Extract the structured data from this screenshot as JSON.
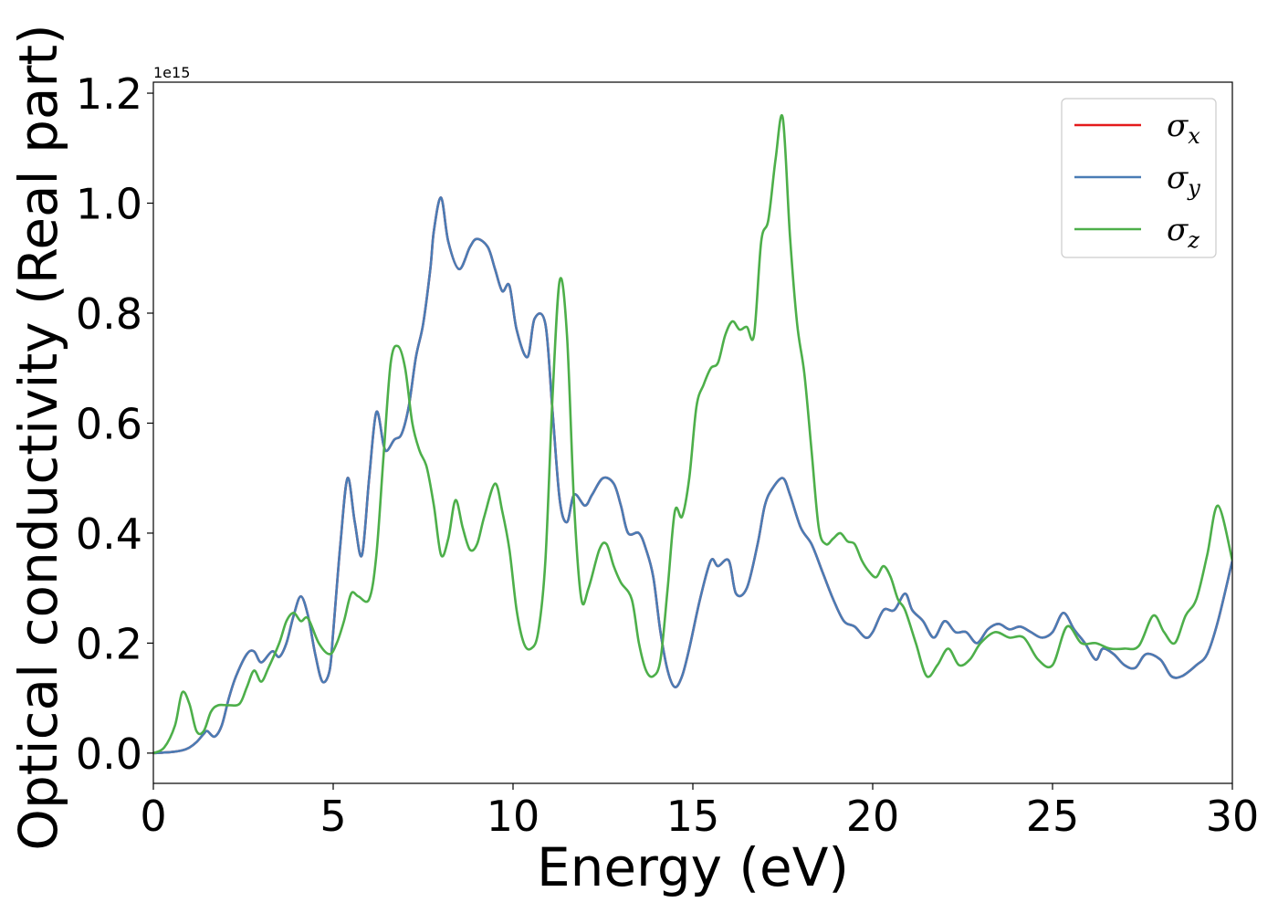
{
  "chart_data": {
    "type": "line",
    "title": "",
    "xlabel": "Energy (eV)",
    "ylabel": "Optical conductivity (Real part)",
    "y_offset_label": "1e15",
    "xlim": [
      0,
      30
    ],
    "ylim": [
      -0.055,
      1.22
    ],
    "xticks": [
      0,
      5,
      10,
      15,
      20,
      25,
      30
    ],
    "xtick_labels": [
      "0",
      "5",
      "10",
      "15",
      "20",
      "25",
      "30"
    ],
    "yticks": [
      0.0,
      0.2,
      0.4,
      0.6,
      0.8,
      1.0,
      1.2
    ],
    "ytick_labels": [
      "0.0",
      "0.2",
      "0.4",
      "0.6",
      "0.8",
      "1.0",
      "1.2"
    ],
    "grid": false,
    "legend_position": "top-right",
    "series": [
      {
        "name": "σ",
        "subscript": "x",
        "color": "#e41a1c",
        "x": [
          0,
          0.5,
          0.8,
          1.0,
          1.2,
          1.4,
          1.5,
          1.7,
          1.9,
          2.1,
          2.3,
          2.6,
          2.8,
          3.0,
          3.3,
          3.5,
          3.7,
          3.9,
          4.1,
          4.3,
          4.5,
          4.7,
          4.9,
          5.0,
          5.2,
          5.4,
          5.6,
          5.8,
          6.0,
          6.2,
          6.4,
          6.5,
          6.7,
          6.9,
          7.1,
          7.3,
          7.5,
          7.7,
          7.8,
          8.0,
          8.2,
          8.5,
          8.8,
          9.0,
          9.3,
          9.5,
          9.7,
          9.9,
          10.1,
          10.4,
          10.6,
          10.9,
          11.1,
          11.3,
          11.5,
          11.7,
          12.0,
          12.2,
          12.5,
          12.8,
          13.0,
          13.2,
          13.5,
          13.7,
          13.9,
          14.1,
          14.3,
          14.5,
          14.7,
          14.9,
          15.2,
          15.5,
          15.7,
          16.0,
          16.2,
          16.5,
          16.8,
          17.0,
          17.2,
          17.5,
          17.7,
          18.0,
          18.3,
          18.6,
          18.9,
          19.2,
          19.5,
          19.8,
          20.0,
          20.3,
          20.6,
          20.9,
          21.1,
          21.4,
          21.7,
          22.0,
          22.3,
          22.6,
          22.9,
          23.2,
          23.5,
          23.8,
          24.1,
          24.4,
          24.7,
          25.0,
          25.3,
          25.6,
          25.9,
          26.2,
          26.4,
          26.7,
          27.0,
          27.3,
          27.6,
          28.0,
          28.3,
          28.6,
          29.0,
          29.3,
          29.6,
          30.0
        ],
        "y": [
          0,
          0.002,
          0.005,
          0.01,
          0.02,
          0.035,
          0.04,
          0.03,
          0.05,
          0.1,
          0.14,
          0.18,
          0.185,
          0.165,
          0.185,
          0.175,
          0.2,
          0.25,
          0.285,
          0.25,
          0.18,
          0.13,
          0.15,
          0.22,
          0.38,
          0.5,
          0.42,
          0.36,
          0.5,
          0.62,
          0.56,
          0.55,
          0.57,
          0.58,
          0.63,
          0.72,
          0.78,
          0.88,
          0.95,
          1.01,
          0.93,
          0.88,
          0.92,
          0.935,
          0.92,
          0.88,
          0.84,
          0.85,
          0.77,
          0.72,
          0.79,
          0.78,
          0.62,
          0.46,
          0.42,
          0.47,
          0.45,
          0.47,
          0.5,
          0.49,
          0.45,
          0.4,
          0.4,
          0.37,
          0.32,
          0.22,
          0.15,
          0.12,
          0.14,
          0.19,
          0.28,
          0.35,
          0.34,
          0.35,
          0.29,
          0.3,
          0.38,
          0.45,
          0.48,
          0.5,
          0.47,
          0.41,
          0.38,
          0.33,
          0.28,
          0.24,
          0.23,
          0.21,
          0.22,
          0.26,
          0.26,
          0.29,
          0.26,
          0.24,
          0.21,
          0.24,
          0.22,
          0.22,
          0.2,
          0.225,
          0.235,
          0.225,
          0.23,
          0.22,
          0.21,
          0.22,
          0.255,
          0.225,
          0.2,
          0.17,
          0.19,
          0.18,
          0.16,
          0.155,
          0.18,
          0.17,
          0.14,
          0.14,
          0.16,
          0.18,
          0.24,
          0.35
        ]
      },
      {
        "name": "σ",
        "subscript": "y",
        "color": "#4a7cb5",
        "x": [
          0,
          0.5,
          0.8,
          1.0,
          1.2,
          1.4,
          1.5,
          1.7,
          1.9,
          2.1,
          2.3,
          2.6,
          2.8,
          3.0,
          3.3,
          3.5,
          3.7,
          3.9,
          4.1,
          4.3,
          4.5,
          4.7,
          4.9,
          5.0,
          5.2,
          5.4,
          5.6,
          5.8,
          6.0,
          6.2,
          6.4,
          6.5,
          6.7,
          6.9,
          7.1,
          7.3,
          7.5,
          7.7,
          7.8,
          8.0,
          8.2,
          8.5,
          8.8,
          9.0,
          9.3,
          9.5,
          9.7,
          9.9,
          10.1,
          10.4,
          10.6,
          10.9,
          11.1,
          11.3,
          11.5,
          11.7,
          12.0,
          12.2,
          12.5,
          12.8,
          13.0,
          13.2,
          13.5,
          13.7,
          13.9,
          14.1,
          14.3,
          14.5,
          14.7,
          14.9,
          15.2,
          15.5,
          15.7,
          16.0,
          16.2,
          16.5,
          16.8,
          17.0,
          17.2,
          17.5,
          17.7,
          18.0,
          18.3,
          18.6,
          18.9,
          19.2,
          19.5,
          19.8,
          20.0,
          20.3,
          20.6,
          20.9,
          21.1,
          21.4,
          21.7,
          22.0,
          22.3,
          22.6,
          22.9,
          23.2,
          23.5,
          23.8,
          24.1,
          24.4,
          24.7,
          25.0,
          25.3,
          25.6,
          25.9,
          26.2,
          26.4,
          26.7,
          27.0,
          27.3,
          27.6,
          28.0,
          28.3,
          28.6,
          29.0,
          29.3,
          29.6,
          30.0
        ],
        "y": [
          0,
          0.002,
          0.005,
          0.01,
          0.02,
          0.035,
          0.04,
          0.03,
          0.05,
          0.1,
          0.14,
          0.18,
          0.185,
          0.165,
          0.185,
          0.175,
          0.2,
          0.25,
          0.285,
          0.25,
          0.18,
          0.13,
          0.15,
          0.22,
          0.38,
          0.5,
          0.42,
          0.36,
          0.5,
          0.62,
          0.56,
          0.55,
          0.57,
          0.58,
          0.63,
          0.72,
          0.78,
          0.88,
          0.95,
          1.01,
          0.93,
          0.88,
          0.92,
          0.935,
          0.92,
          0.88,
          0.84,
          0.85,
          0.77,
          0.72,
          0.79,
          0.78,
          0.62,
          0.46,
          0.42,
          0.47,
          0.45,
          0.47,
          0.5,
          0.49,
          0.45,
          0.4,
          0.4,
          0.37,
          0.32,
          0.22,
          0.15,
          0.12,
          0.14,
          0.19,
          0.28,
          0.35,
          0.34,
          0.35,
          0.29,
          0.3,
          0.38,
          0.45,
          0.48,
          0.5,
          0.47,
          0.41,
          0.38,
          0.33,
          0.28,
          0.24,
          0.23,
          0.21,
          0.22,
          0.26,
          0.26,
          0.29,
          0.26,
          0.24,
          0.21,
          0.24,
          0.22,
          0.22,
          0.2,
          0.225,
          0.235,
          0.225,
          0.23,
          0.22,
          0.21,
          0.22,
          0.255,
          0.225,
          0.2,
          0.17,
          0.19,
          0.18,
          0.16,
          0.155,
          0.18,
          0.17,
          0.14,
          0.14,
          0.16,
          0.18,
          0.24,
          0.35
        ]
      },
      {
        "name": "σ",
        "subscript": "z",
        "color": "#4daf4a",
        "x": [
          0,
          0.3,
          0.6,
          0.8,
          1.0,
          1.2,
          1.4,
          1.6,
          1.8,
          2.1,
          2.4,
          2.6,
          2.8,
          3.0,
          3.2,
          3.5,
          3.7,
          3.9,
          4.1,
          4.3,
          4.6,
          4.9,
          5.1,
          5.3,
          5.5,
          5.7,
          6.0,
          6.2,
          6.4,
          6.6,
          6.8,
          7.0,
          7.2,
          7.4,
          7.6,
          7.8,
          8.0,
          8.2,
          8.4,
          8.6,
          8.8,
          9.0,
          9.2,
          9.5,
          9.7,
          9.9,
          10.1,
          10.3,
          10.5,
          10.7,
          10.9,
          11.1,
          11.3,
          11.5,
          11.7,
          11.9,
          12.1,
          12.4,
          12.6,
          12.8,
          13.0,
          13.3,
          13.5,
          13.7,
          13.9,
          14.1,
          14.3,
          14.5,
          14.7,
          14.9,
          15.1,
          15.3,
          15.5,
          15.7,
          15.9,
          16.1,
          16.3,
          16.5,
          16.7,
          16.9,
          17.1,
          17.3,
          17.5,
          17.7,
          17.9,
          18.1,
          18.3,
          18.5,
          18.7,
          18.9,
          19.1,
          19.3,
          19.5,
          19.7,
          19.9,
          20.1,
          20.3,
          20.5,
          20.7,
          20.9,
          21.2,
          21.5,
          21.8,
          22.1,
          22.4,
          22.7,
          23.0,
          23.4,
          23.8,
          24.2,
          24.6,
          25.0,
          25.4,
          25.8,
          26.2,
          26.6,
          27.0,
          27.4,
          27.8,
          28.1,
          28.4,
          28.7,
          29.0,
          29.3,
          29.6,
          30.0
        ],
        "y": [
          0,
          0.01,
          0.05,
          0.11,
          0.09,
          0.04,
          0.04,
          0.075,
          0.087,
          0.087,
          0.09,
          0.12,
          0.15,
          0.13,
          0.155,
          0.2,
          0.24,
          0.255,
          0.24,
          0.245,
          0.2,
          0.18,
          0.2,
          0.24,
          0.29,
          0.285,
          0.28,
          0.36,
          0.54,
          0.71,
          0.74,
          0.7,
          0.6,
          0.55,
          0.52,
          0.45,
          0.36,
          0.39,
          0.46,
          0.41,
          0.37,
          0.38,
          0.43,
          0.49,
          0.44,
          0.37,
          0.26,
          0.2,
          0.19,
          0.22,
          0.35,
          0.65,
          0.86,
          0.76,
          0.45,
          0.28,
          0.3,
          0.37,
          0.38,
          0.34,
          0.31,
          0.28,
          0.2,
          0.15,
          0.14,
          0.17,
          0.3,
          0.44,
          0.43,
          0.5,
          0.63,
          0.67,
          0.7,
          0.71,
          0.76,
          0.785,
          0.77,
          0.775,
          0.76,
          0.93,
          0.97,
          1.08,
          1.155,
          0.94,
          0.78,
          0.69,
          0.55,
          0.41,
          0.38,
          0.39,
          0.4,
          0.385,
          0.38,
          0.35,
          0.33,
          0.32,
          0.34,
          0.32,
          0.28,
          0.26,
          0.2,
          0.14,
          0.16,
          0.19,
          0.16,
          0.17,
          0.2,
          0.22,
          0.21,
          0.21,
          0.17,
          0.16,
          0.23,
          0.2,
          0.2,
          0.19,
          0.19,
          0.195,
          0.25,
          0.22,
          0.2,
          0.25,
          0.28,
          0.36,
          0.45,
          0.35
        ]
      }
    ]
  }
}
